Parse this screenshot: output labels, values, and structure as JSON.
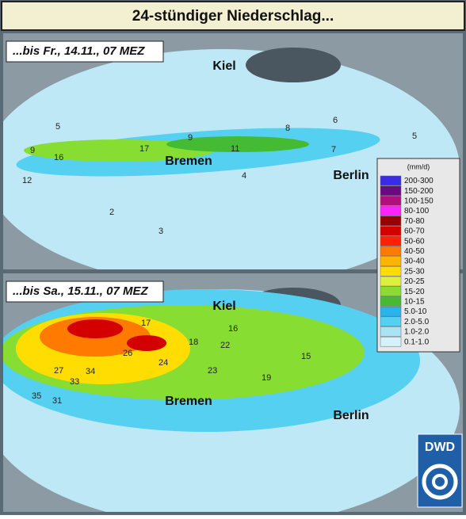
{
  "title": "24-stündiger Niederschlag...",
  "panels": [
    {
      "label": "...bis Fr., 14.11., 07 MEZ",
      "cities": [
        "Kiel",
        "Bremen",
        "Berlin"
      ],
      "station_values": [
        16,
        17,
        9,
        12,
        11,
        5,
        7,
        4,
        9,
        2,
        8,
        6,
        3,
        5
      ]
    },
    {
      "label": "...bis Sa., 15.11., 07 MEZ",
      "cities": [
        "Kiel",
        "Bremen",
        "Berlin"
      ],
      "station_values": [
        34,
        27,
        26,
        33,
        31,
        35,
        22,
        24,
        18,
        16,
        19,
        17,
        23,
        15
      ]
    }
  ],
  "legend": {
    "unit": "(mm/d)",
    "entries": [
      {
        "label": "200-300",
        "color": "#3a2ce6"
      },
      {
        "label": "150-200",
        "color": "#6a0a80"
      },
      {
        "label": "100-150",
        "color": "#b0107c"
      },
      {
        "label": "80-100",
        "color": "#ff22ff"
      },
      {
        "label": "70-80",
        "color": "#9a0000"
      },
      {
        "label": "60-70",
        "color": "#d40000"
      },
      {
        "label": "50-60",
        "color": "#ff2000"
      },
      {
        "label": "40-50",
        "color": "#ff7a00"
      },
      {
        "label": "30-40",
        "color": "#ffb400"
      },
      {
        "label": "25-30",
        "color": "#ffdd00"
      },
      {
        "label": "20-25",
        "color": "#ddf040"
      },
      {
        "label": "15-20",
        "color": "#88dd33"
      },
      {
        "label": "10-15",
        "color": "#44bb33"
      },
      {
        "label": "5.0-10",
        "color": "#28b4ec"
      },
      {
        "label": "2.0-5.0",
        "color": "#55d0f0"
      },
      {
        "label": "1.0-2.0",
        "color": "#a8e4f6"
      },
      {
        "label": "0.1-1.0",
        "color": "#d4f2fb"
      }
    ]
  },
  "logo": "DWD"
}
